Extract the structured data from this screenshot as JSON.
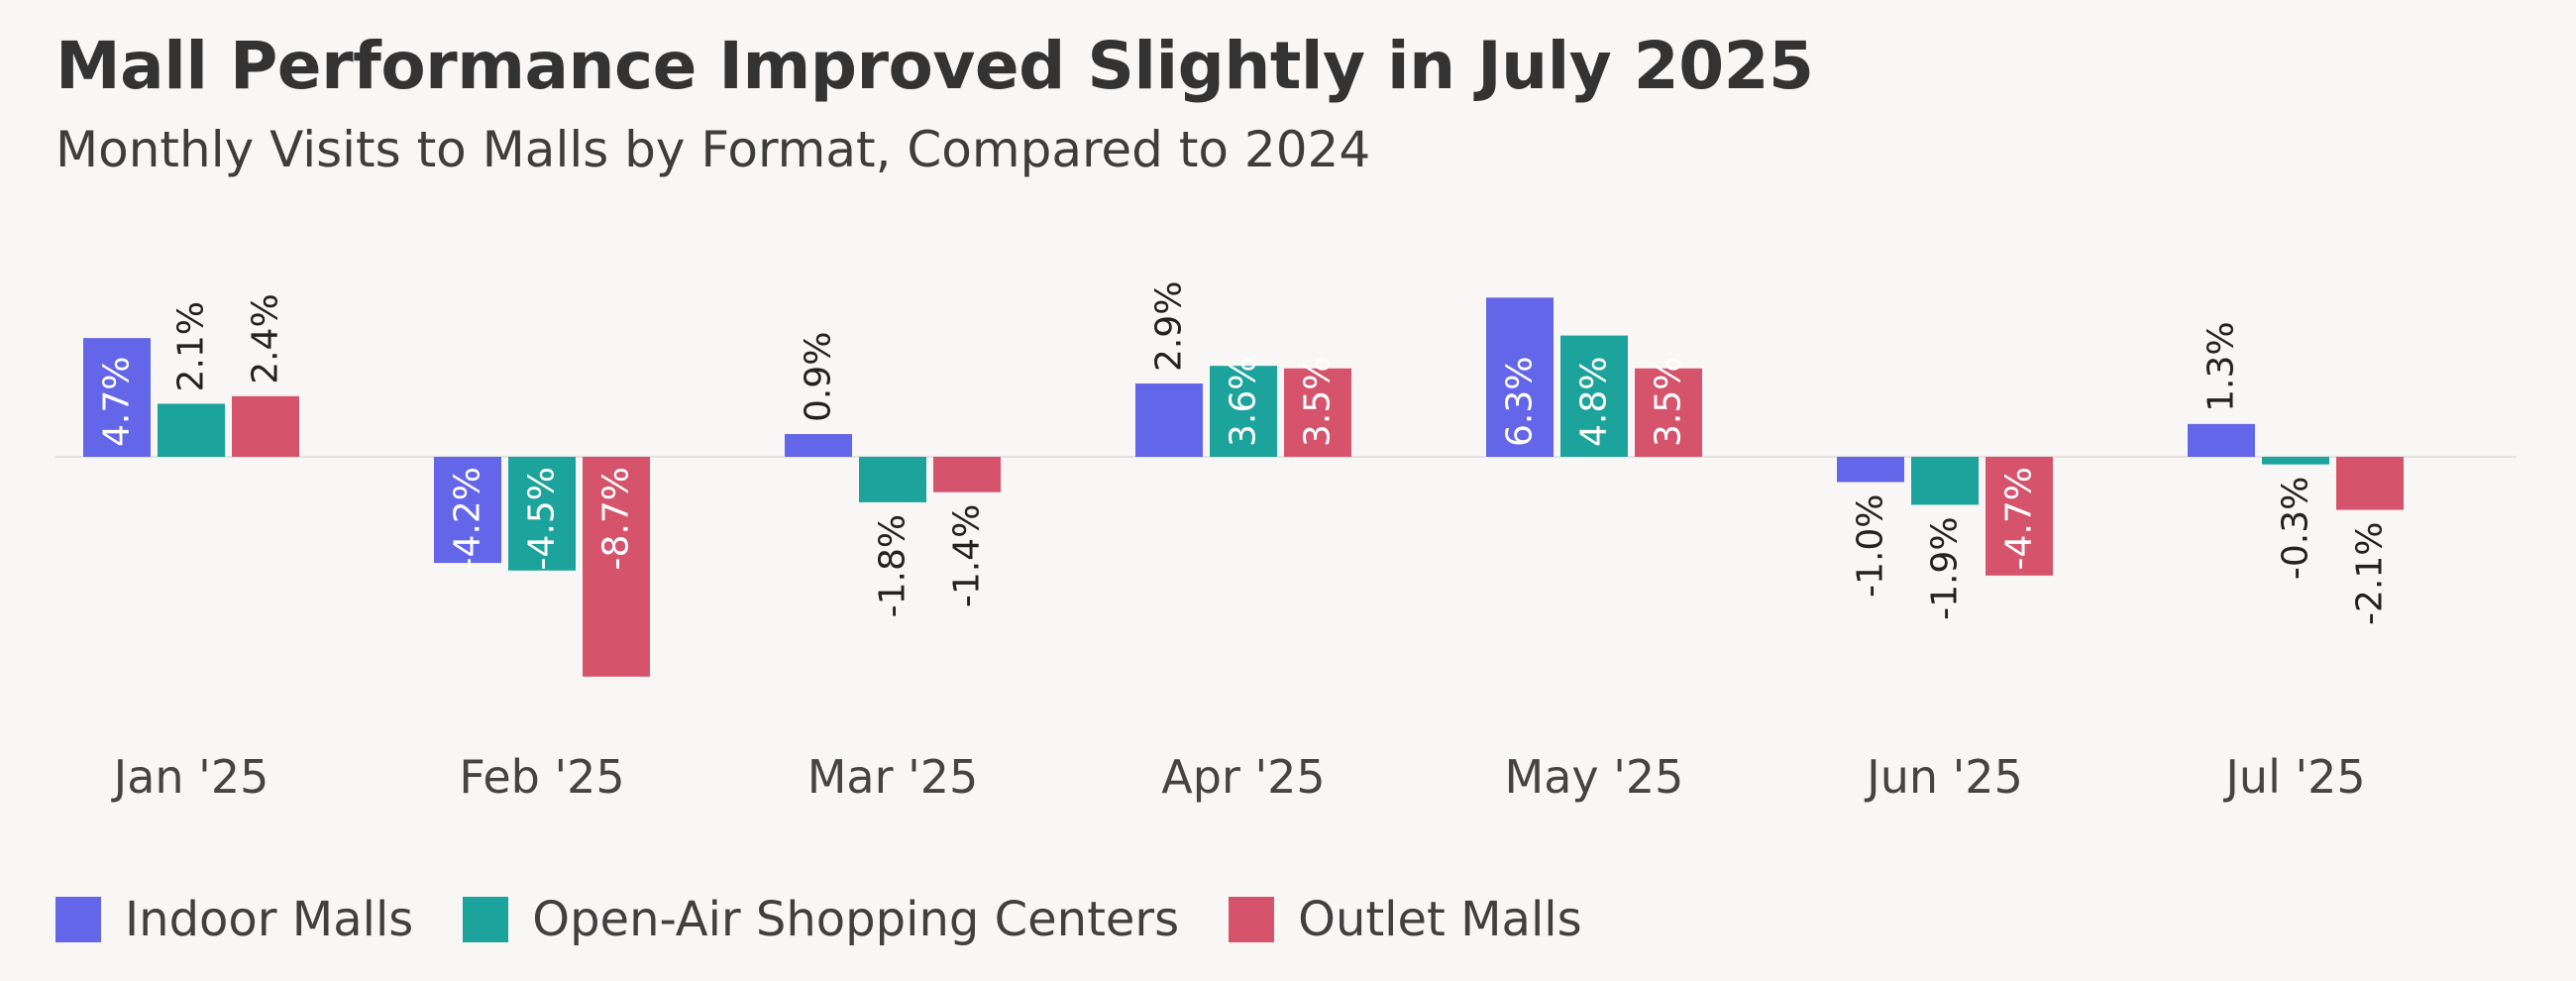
{
  "title": "Mall Performance Improved Slightly in July 2025",
  "subtitle": "Monthly Visits to Malls by Format, Compared to 2024",
  "chart_data": {
    "type": "bar",
    "categories": [
      "Jan '25",
      "Feb '25",
      "Mar '25",
      "Apr '25",
      "May '25",
      "Jun '25",
      "Jul '25"
    ],
    "series": [
      {
        "name": "Indoor Malls",
        "color": "#6366e8",
        "values": [
          4.7,
          -4.2,
          0.9,
          2.9,
          6.3,
          -1.0,
          1.3
        ],
        "labels": [
          "4.7%",
          "-4.2%",
          "0.9%",
          "2.9%",
          "6.3%",
          "-1.0%",
          "1.3%"
        ]
      },
      {
        "name": "Open-Air Shopping Centers",
        "color": "#1ba39c",
        "values": [
          2.1,
          -4.5,
          -1.8,
          3.6,
          4.8,
          -1.9,
          -0.3
        ],
        "labels": [
          "2.1%",
          "-4.5%",
          "-1.8%",
          "3.6%",
          "4.8%",
          "-1.9%",
          "-0.3%"
        ]
      },
      {
        "name": "Outlet Malls",
        "color": "#d5546c",
        "values": [
          2.4,
          -8.7,
          -1.4,
          3.5,
          3.5,
          -4.7,
          -2.1
        ],
        "labels": [
          "2.4%",
          "-8.7%",
          "-1.4%",
          "3.5%",
          "3.5%",
          "-4.7%",
          "-2.1%"
        ]
      }
    ],
    "units": "%",
    "ylim": [
      -8.7,
      6.3
    ],
    "grid": false,
    "legend_position": "bottom-left"
  }
}
